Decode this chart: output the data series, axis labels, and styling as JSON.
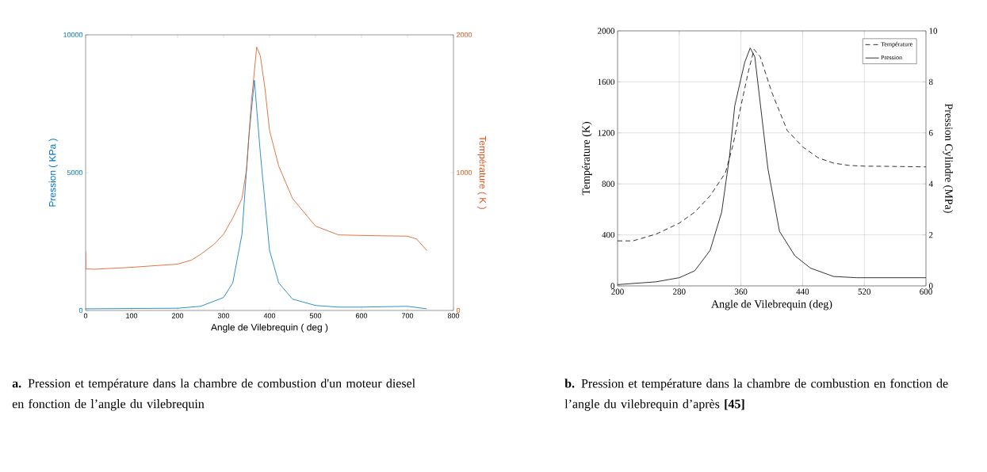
{
  "chart_data": [
    {
      "type": "line",
      "xlabel": "Angle de Vilebrequin ( deg )",
      "ylabel": "Pression ( KPa )",
      "y2label": "Température ( K )",
      "xlim": [
        0,
        800
      ],
      "xticks": [
        0,
        100,
        200,
        300,
        400,
        500,
        600,
        700,
        800
      ],
      "ylim": [
        0,
        10000
      ],
      "yticks": [
        0,
        5000,
        10000
      ],
      "y2lim": [
        0,
        2000
      ],
      "y2ticks": [
        0,
        1000,
        2000
      ],
      "grid": false,
      "legend": false,
      "marker": "none",
      "annotations": [
        "**a.** Pression et température dans la chambre de combustion d'un moteur diesel en fonction de l’angle du vilebrequin"
      ],
      "series": [
        {
          "color": "#0072bd",
          "x": [
            0,
            100,
            200,
            250,
            300,
            320,
            340,
            355,
            367,
            380,
            400,
            420,
            450,
            500,
            550,
            600,
            700,
            742
          ],
          "values": [
            60,
            70,
            80,
            150,
            470,
            1000,
            2760,
            6300,
            8350,
            5700,
            2180,
            1000,
            410,
            180,
            120,
            120,
            150,
            60
          ]
        },
        {
          "color": "#d95319",
          "axis": "y2",
          "x": [
            0,
            0.5,
            20,
            100,
            200,
            230,
            250,
            280,
            300,
            320,
            340,
            350,
            360,
            372,
            380,
            390,
            400,
            420,
            450,
            500,
            550,
            600,
            650,
            700,
            720,
            742
          ],
          "values": [
            428,
            301,
            299,
            313,
            336,
            365,
            407,
            482,
            553,
            670,
            812,
            1024,
            1494,
            1911,
            1847,
            1612,
            1306,
            1047,
            812,
            612,
            548,
            544,
            541,
            539,
            518,
            435
          ]
        }
      ]
    },
    {
      "type": "line",
      "xlabel": "Angle de Vilebrequin (deg)",
      "ylabel": "Température (K)",
      "y2label": "Pression Cylindre (MPa)",
      "xlim": [
        200,
        600
      ],
      "xticks": [
        200,
        280,
        360,
        440,
        520,
        600
      ],
      "ylim": [
        0,
        2000
      ],
      "yticks": [
        0,
        400,
        800,
        1200,
        1600,
        2000
      ],
      "y2lim": [
        0,
        10
      ],
      "y2ticks": [
        0,
        2,
        4,
        6,
        8,
        10
      ],
      "grid": true,
      "legend": "top right",
      "marker": "none",
      "annotations": [
        "**b.** Pression et température dans la chambre de combustion en fonction de l’angle du vilebrequin d’après **[45]**"
      ],
      "series": [
        {
          "name": "Température",
          "color": "#000000",
          "line_style": "dashed",
          "x": [
            200,
            220,
            250,
            280,
            300,
            320,
            340,
            350,
            360,
            370,
            377,
            385,
            400,
            420,
            440,
            460,
            480,
            500,
            520,
            560,
            600
          ],
          "values": [
            353,
            353,
            406,
            492,
            578,
            706,
            888,
            1112,
            1412,
            1690,
            1855,
            1797,
            1519,
            1219,
            1091,
            1005,
            963,
            945,
            939,
            937,
            933
          ]
        },
        {
          "name": "Pression",
          "color": "#000000",
          "line_style": "solid",
          "axis": "y2",
          "x": [
            200,
            250,
            280,
            300,
            320,
            335,
            345,
            352,
            360,
            365,
            372,
            378,
            385,
            395,
            410,
            430,
            450,
            480,
            510,
            600
          ],
          "values": [
            0.05,
            0.16,
            0.32,
            0.59,
            1.39,
            2.89,
            5.03,
            7.06,
            8.13,
            8.77,
            9.33,
            8.98,
            7.17,
            4.6,
            2.14,
            1.18,
            0.7,
            0.37,
            0.32,
            0.32
          ]
        }
      ]
    }
  ]
}
